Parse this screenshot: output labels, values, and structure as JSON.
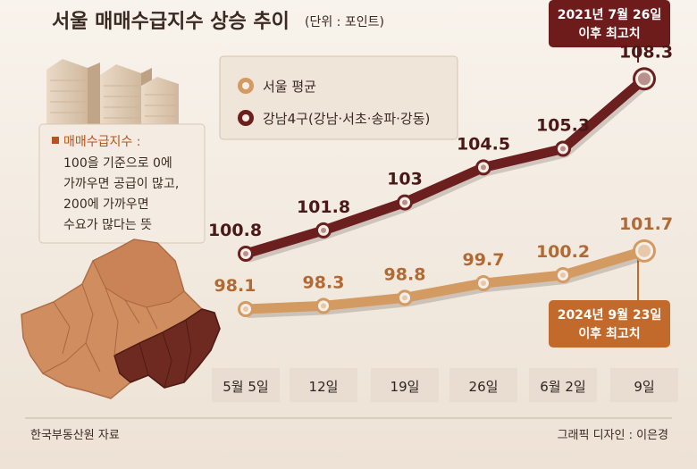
{
  "title": "서울 매매수급지수 상승 추이",
  "unit": "(단위 : 포인트)",
  "note": {
    "heading": "매매수급지수 :",
    "lines": [
      "100을 기준으로 0에",
      "가까우면 공급이 많고,",
      "200에 가까우면",
      "수요가 많다는 뜻"
    ]
  },
  "callout_top": [
    "2021년 7월 26일",
    "이후 최고치"
  ],
  "callout_bottom": [
    "2024년 9월 23일",
    "이후 최고치"
  ],
  "footer": {
    "source": "한국부동산원 자료",
    "credit": "그래픽 디자인 : 이은경"
  },
  "colors": {
    "gangnam": "#6b1f1f",
    "seoul": "#d39a62",
    "callout_dark": "#6e1b1b",
    "callout_orange": "#c26a2b"
  },
  "chart_data": {
    "type": "line",
    "categories": [
      "5월 5일",
      "12일",
      "19일",
      "26일",
      "6월 2일",
      "9일"
    ],
    "series": [
      {
        "name": "서울 평균",
        "values": [
          98.1,
          98.3,
          98.8,
          99.7,
          100.2,
          101.7
        ]
      },
      {
        "name": "강남4구(강남·서초·송파·강동)",
        "values": [
          100.8,
          101.8,
          103,
          104.5,
          105.3,
          108.3
        ]
      }
    ],
    "legend_position": "top-center",
    "grid": false
  }
}
